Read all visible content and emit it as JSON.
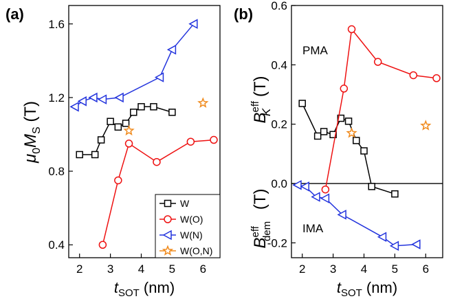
{
  "chart_data": [
    {
      "panel_label": "(a)",
      "type": "scatter",
      "xlabel": "t_SOT (nm)",
      "xlabel_main": "t",
      "xlabel_sub": "SOT",
      "xlabel_unit": " (nm)",
      "ylabel_main": "μ",
      "ylabel_sub0": "0",
      "ylabel_M": "M",
      "ylabel_subS": "S",
      "ylabel_unit": " (T)",
      "xlim": [
        1.65,
        6.55
      ],
      "ylim": [
        0.33,
        1.7
      ],
      "xticks": [
        2,
        3,
        4,
        5,
        6
      ],
      "yticks": [
        0.4,
        0.8,
        1.2,
        1.6
      ],
      "ytick_labels": [
        "0.4",
        "0.8",
        "1.2",
        "1.6"
      ],
      "legend_position": "bottom-right",
      "series": [
        {
          "name": "W",
          "marker": "square",
          "color": "#000000",
          "line": true,
          "x": [
            2.0,
            2.5,
            2.7,
            3.0,
            3.25,
            3.5,
            3.75,
            4.0,
            4.4,
            5.0
          ],
          "y": [
            0.89,
            0.89,
            0.97,
            1.07,
            1.04,
            1.06,
            1.12,
            1.15,
            1.15,
            1.12
          ]
        },
        {
          "name": "W(O)",
          "marker": "circle",
          "color": "#ee1111",
          "line": true,
          "x": [
            2.75,
            3.25,
            3.6,
            4.5,
            5.6,
            6.35
          ],
          "y": [
            0.4,
            0.75,
            0.95,
            0.85,
            0.96,
            0.97
          ]
        },
        {
          "name": "W(N)",
          "marker": "triangle-left",
          "color": "#2233dd",
          "line": true,
          "x": [
            1.85,
            2.1,
            2.45,
            2.75,
            3.3,
            4.6,
            5.0,
            5.7
          ],
          "y": [
            1.15,
            1.18,
            1.2,
            1.19,
            1.2,
            1.31,
            1.46,
            1.6
          ]
        },
        {
          "name": "W(O,N)",
          "marker": "star",
          "color": "#f08a1c",
          "line": false,
          "x": [
            3.6,
            6.0
          ],
          "y": [
            1.02,
            1.17
          ]
        }
      ]
    },
    {
      "panel_label": "(b)",
      "type": "scatter",
      "xlabel_main": "t",
      "xlabel_sub": "SOT",
      "xlabel_unit": " (nm)",
      "ylabel_top": {
        "main": "B",
        "sup": "eff",
        "sub": "K",
        "unit": " (T)"
      },
      "ylabel_bottom": {
        "main": "B",
        "sup": "eff",
        "sub": "dem",
        "unit": " (T)"
      },
      "annotations": [
        "PMA",
        "IMA"
      ],
      "xlim": [
        1.65,
        6.55
      ],
      "ylim": [
        -0.25,
        0.6
      ],
      "xticks": [
        2,
        3,
        4,
        5,
        6
      ],
      "yticks": [
        -0.2,
        0.0,
        0.2,
        0.4,
        0.6
      ],
      "ytick_labels": [
        "-0.2",
        "0.0",
        "0.2",
        "0.4",
        "0.6"
      ],
      "zero_line": true,
      "series": [
        {
          "name": "W",
          "marker": "square",
          "color": "#000000",
          "line": true,
          "x": [
            2.0,
            2.5,
            2.7,
            3.0,
            3.25,
            3.5,
            3.75,
            4.0,
            4.25,
            5.0
          ],
          "y": [
            0.27,
            0.16,
            0.175,
            0.165,
            0.22,
            0.21,
            0.145,
            0.11,
            -0.01,
            -0.035
          ]
        },
        {
          "name": "W(O)",
          "marker": "circle",
          "color": "#ee1111",
          "line": true,
          "x": [
            2.75,
            3.35,
            3.6,
            4.45,
            5.6,
            6.35
          ],
          "y": [
            -0.02,
            0.32,
            0.52,
            0.41,
            0.365,
            0.355
          ]
        },
        {
          "name": "W(N)",
          "marker": "triangle-left",
          "color": "#2233dd",
          "line": true,
          "x": [
            1.85,
            2.1,
            2.45,
            2.75,
            3.3,
            4.6,
            5.0,
            5.7
          ],
          "y": [
            -0.005,
            -0.01,
            -0.045,
            -0.05,
            -0.105,
            -0.18,
            -0.21,
            -0.205
          ]
        },
        {
          "name": "W(O,N)",
          "marker": "star",
          "color": "#f08a1c",
          "line": false,
          "x": [
            3.6,
            6.0
          ],
          "y": [
            0.17,
            0.195
          ]
        }
      ]
    }
  ]
}
